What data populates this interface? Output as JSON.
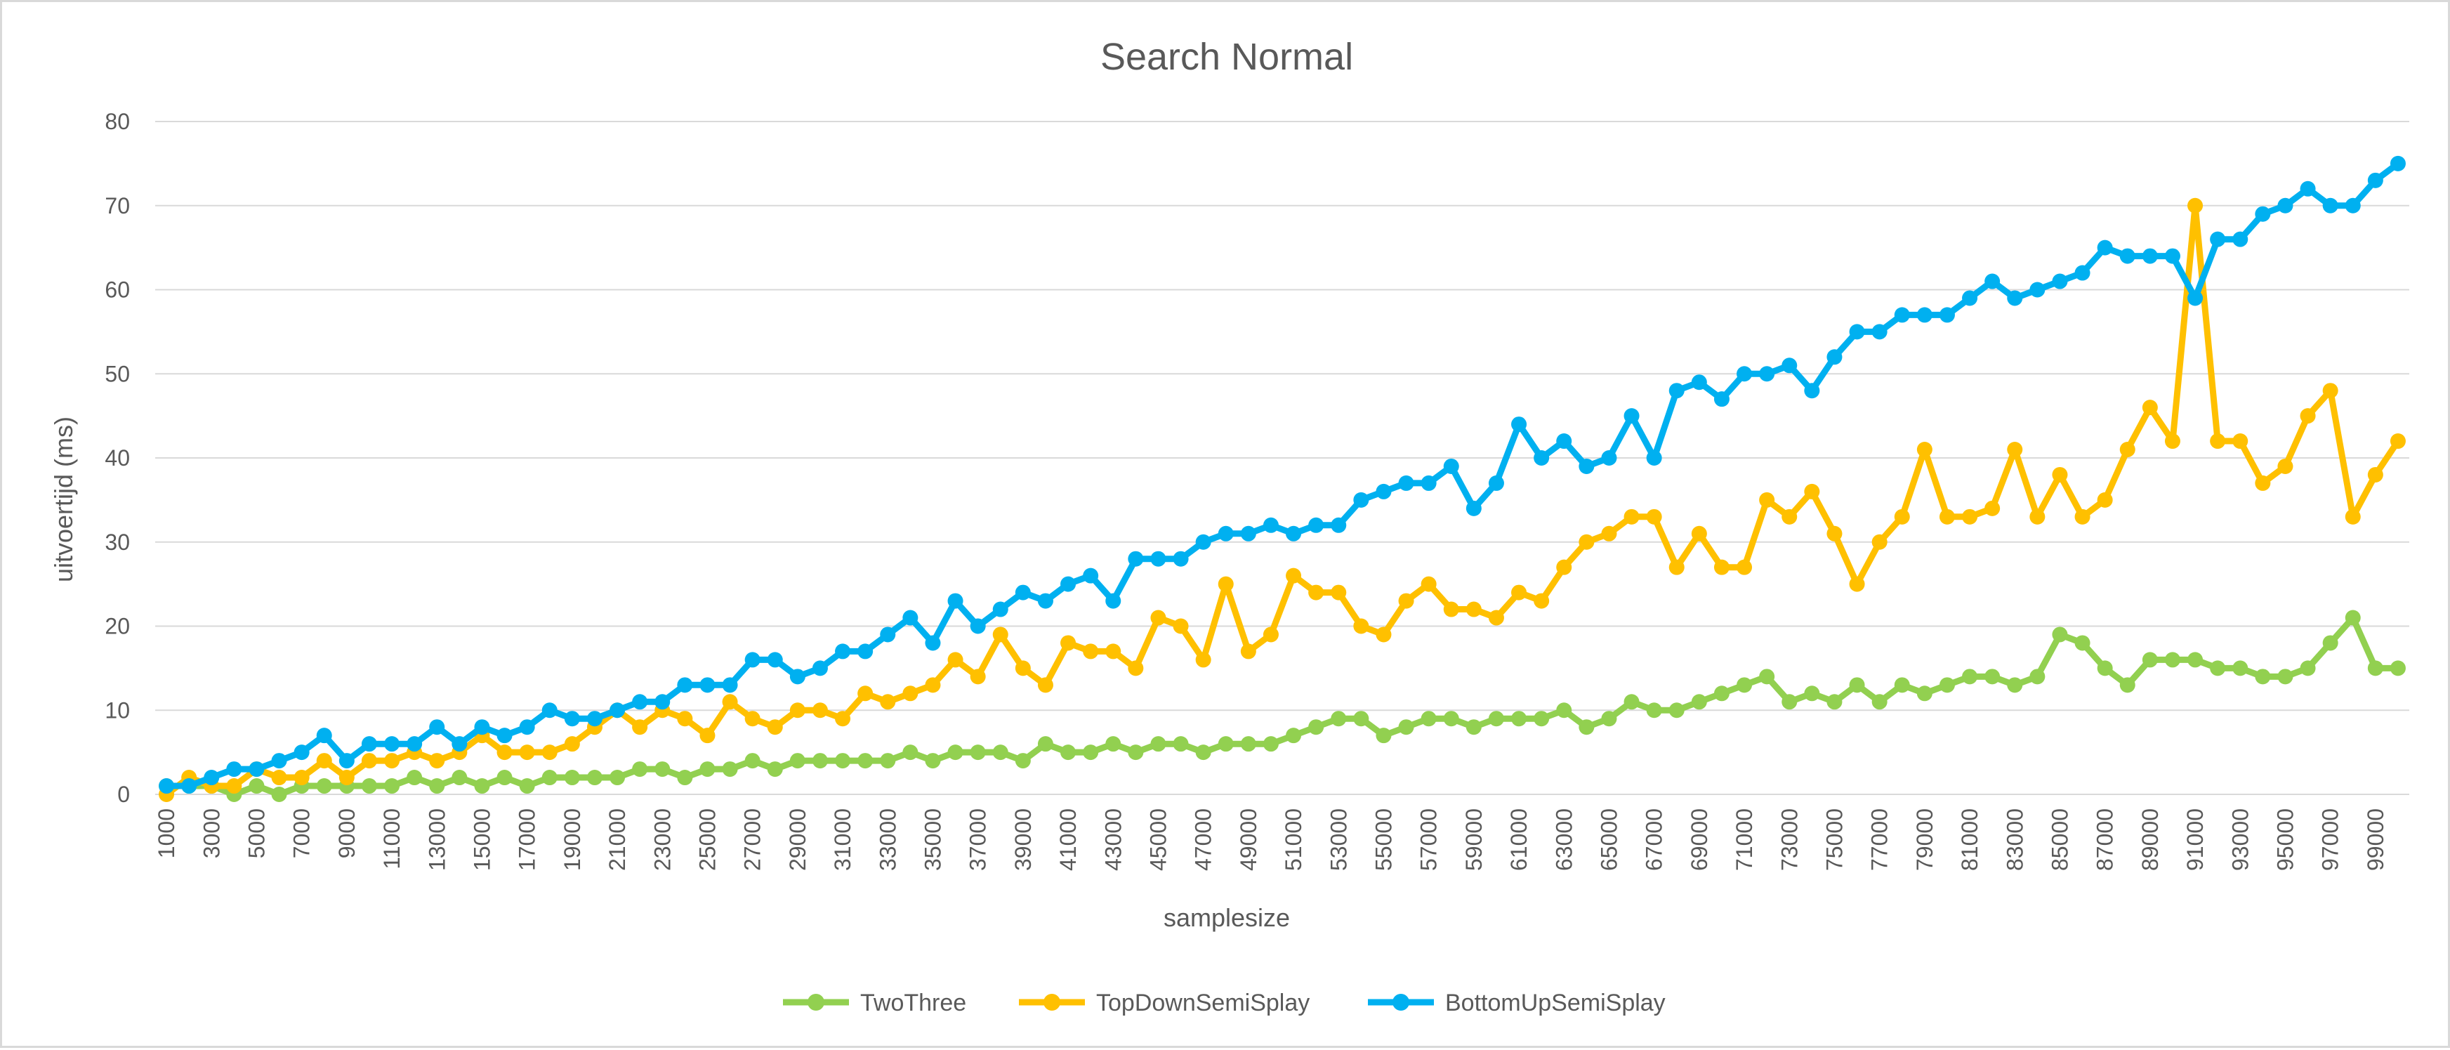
{
  "chart_data": {
    "type": "line",
    "title": "Search Normal",
    "xlabel": "samplesize",
    "ylabel": "uitvoertijd (ms)",
    "ylim": [
      0,
      80
    ],
    "yticks": [
      0,
      10,
      20,
      30,
      40,
      50,
      60,
      70,
      80
    ],
    "grid": true,
    "legend_position": "bottom",
    "x": [
      1000,
      2000,
      3000,
      4000,
      5000,
      6000,
      7000,
      8000,
      9000,
      10000,
      11000,
      12000,
      13000,
      14000,
      15000,
      16000,
      17000,
      18000,
      19000,
      20000,
      21000,
      22000,
      23000,
      24000,
      25000,
      26000,
      27000,
      28000,
      29000,
      30000,
      31000,
      32000,
      33000,
      34000,
      35000,
      36000,
      37000,
      38000,
      39000,
      40000,
      41000,
      42000,
      43000,
      44000,
      45000,
      46000,
      47000,
      48000,
      49000,
      50000,
      51000,
      52000,
      53000,
      54000,
      55000,
      56000,
      57000,
      58000,
      59000,
      60000,
      61000,
      62000,
      63000,
      64000,
      65000,
      66000,
      67000,
      68000,
      69000,
      70000,
      71000,
      72000,
      73000,
      74000,
      75000,
      76000,
      77000,
      78000,
      79000,
      80000,
      81000,
      82000,
      83000,
      84000,
      85000,
      86000,
      87000,
      88000,
      89000,
      90000,
      91000,
      92000,
      93000,
      94000,
      95000,
      96000,
      97000,
      98000,
      99000,
      100000
    ],
    "xtick_labels": [
      "1000",
      "3000",
      "5000",
      "7000",
      "9000",
      "11000",
      "13000",
      "15000",
      "17000",
      "19000",
      "21000",
      "23000",
      "25000",
      "27000",
      "29000",
      "31000",
      "33000",
      "35000",
      "37000",
      "39000",
      "41000",
      "43000",
      "45000",
      "47000",
      "49000",
      "51000",
      "53000",
      "55000",
      "57000",
      "59000",
      "61000",
      "63000",
      "65000",
      "67000",
      "69000",
      "71000",
      "73000",
      "75000",
      "77000",
      "79000",
      "81000",
      "83000",
      "85000",
      "87000",
      "89000",
      "91000",
      "93000",
      "95000",
      "97000",
      "99000"
    ],
    "series": [
      {
        "name": "TwoThree",
        "color": "#92d050",
        "values": [
          1,
          1,
          1,
          0,
          1,
          0,
          1,
          1,
          1,
          1,
          1,
          2,
          1,
          2,
          1,
          2,
          1,
          2,
          2,
          2,
          2,
          3,
          3,
          2,
          3,
          3,
          4,
          3,
          4,
          4,
          4,
          4,
          4,
          5,
          4,
          5,
          5,
          5,
          4,
          6,
          5,
          5,
          6,
          5,
          6,
          6,
          5,
          6,
          6,
          6,
          7,
          8,
          9,
          9,
          7,
          8,
          9,
          9,
          8,
          9,
          9,
          9,
          10,
          8,
          9,
          11,
          10,
          10,
          11,
          12,
          13,
          14,
          11,
          12,
          11,
          13,
          11,
          13,
          12,
          13,
          14,
          14,
          13,
          14,
          19,
          18,
          15,
          13,
          16,
          16,
          16,
          15,
          15,
          14,
          14,
          15,
          18,
          21,
          15,
          15
        ]
      },
      {
        "name": "TopDownSemiSplay",
        "color": "#ffc000",
        "values": [
          0,
          2,
          1,
          1,
          3,
          2,
          2,
          4,
          2,
          4,
          4,
          5,
          4,
          5,
          7,
          5,
          5,
          5,
          6,
          8,
          10,
          8,
          10,
          9,
          7,
          11,
          9,
          8,
          10,
          10,
          9,
          12,
          11,
          12,
          13,
          16,
          14,
          19,
          15,
          13,
          18,
          17,
          17,
          15,
          21,
          20,
          16,
          25,
          17,
          19,
          26,
          24,
          24,
          20,
          19,
          23,
          25,
          22,
          22,
          21,
          24,
          23,
          27,
          30,
          31,
          33,
          33,
          27,
          31,
          27,
          27,
          35,
          33,
          36,
          31,
          25,
          30,
          33,
          41,
          33,
          33,
          34,
          41,
          33,
          38,
          33,
          35,
          41,
          46,
          42,
          70,
          42,
          42,
          37,
          39,
          45,
          48,
          33,
          38,
          42
        ]
      },
      {
        "name": "BottomUpSemiSplay",
        "color": "#00b0f0",
        "values": [
          1,
          1,
          2,
          3,
          3,
          4,
          5,
          7,
          4,
          6,
          6,
          6,
          8,
          6,
          8,
          7,
          8,
          10,
          9,
          9,
          10,
          11,
          11,
          13,
          13,
          13,
          16,
          16,
          14,
          15,
          17,
          17,
          19,
          21,
          18,
          23,
          20,
          22,
          24,
          23,
          25,
          26,
          23,
          28,
          28,
          28,
          30,
          31,
          31,
          32,
          31,
          32,
          32,
          35,
          36,
          37,
          37,
          39,
          34,
          37,
          44,
          40,
          42,
          39,
          40,
          45,
          40,
          48,
          49,
          47,
          50,
          50,
          51,
          48,
          52,
          55,
          55,
          57,
          57,
          57,
          59,
          61,
          59,
          60,
          61,
          62,
          65,
          64,
          64,
          64,
          59,
          66,
          66,
          69,
          70,
          72,
          70,
          70,
          73,
          75
        ]
      }
    ]
  }
}
